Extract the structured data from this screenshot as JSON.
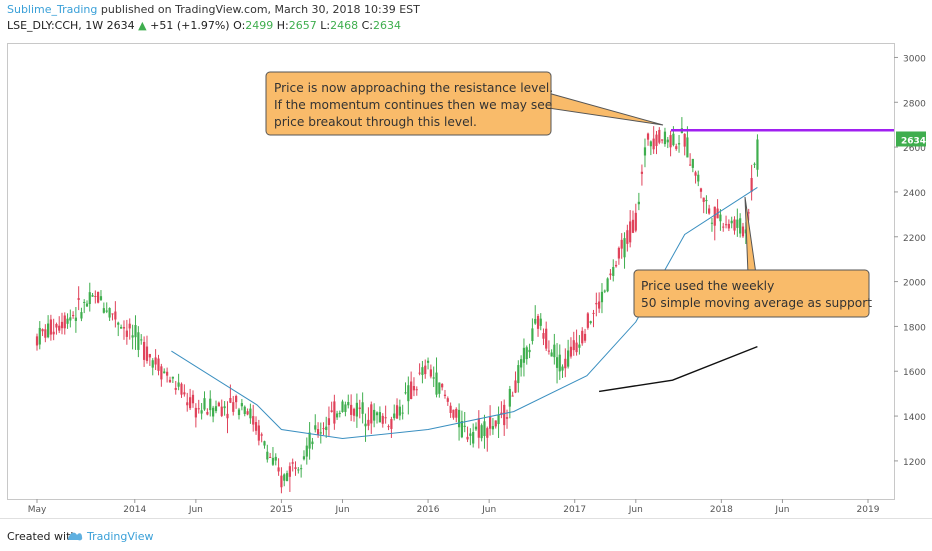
{
  "header": {
    "author": "Sublime_Trading",
    "published": "published on TradingView.com, March 30, 2018 10:39 EST",
    "symbol": "LSE_DLY:CCH, 1W",
    "last": "2634",
    "arrow": "▲",
    "change": "+51 (+1.97%)",
    "o_label": "O:",
    "o_val": "2499",
    "h_label": "H:",
    "h_val": "2657",
    "l_label": "L:",
    "l_val": "2468",
    "c_label": "C:",
    "c_val": "2634"
  },
  "footer": {
    "created": "Created with",
    "brand": "TradingView"
  },
  "chart_data": {
    "type": "candlestick",
    "x_tick_labels": [
      "May",
      "2014",
      "Jun",
      "2015",
      "Jun",
      "2016",
      "Jun",
      "2017",
      "Jun",
      "2018",
      "Jun",
      "2019"
    ],
    "y_ticks": [
      1200,
      1400,
      1600,
      1800,
      2000,
      2200,
      2400,
      2600,
      2800,
      3000
    ],
    "ylim": [
      1030,
      3060
    ],
    "last_price_label": "2634",
    "resistance_level": 2675,
    "colors": {
      "up": "#3fae4e",
      "down": "#e0425a",
      "resistance": "#a020f0",
      "sma50": "#3a8fc0",
      "sma200": "#111111",
      "callout_fill": "#f9bb6a",
      "callout_stroke": "#555555"
    },
    "annotations": [
      {
        "lines": [
          "Price is now approaching the resistance level.",
          "If the momentum continues then we may see",
          "price breakout through this level."
        ]
      },
      {
        "lines": [
          "Price used the weekly",
          "50 simple moving average as support"
        ]
      }
    ],
    "key_points": [
      {
        "date": "2013-05",
        "close": 1750
      },
      {
        "date": "2013-10",
        "close": 1930
      },
      {
        "date": "2014-02",
        "close": 1690
      },
      {
        "date": "2014-06",
        "close": 1430
      },
      {
        "date": "2014-10",
        "close": 1460
      },
      {
        "date": "2015-01",
        "close": 1110
      },
      {
        "date": "2015-04",
        "close": 1330
      },
      {
        "date": "2015-06",
        "close": 1450
      },
      {
        "date": "2015-10",
        "close": 1380
      },
      {
        "date": "2016-01",
        "close": 1620
      },
      {
        "date": "2016-04",
        "close": 1330
      },
      {
        "date": "2016-07",
        "close": 1370
      },
      {
        "date": "2016-10",
        "close": 1820
      },
      {
        "date": "2016-12",
        "close": 1620
      },
      {
        "date": "2017-03",
        "close": 1900
      },
      {
        "date": "2017-06",
        "close": 2280
      },
      {
        "date": "2017-07",
        "close": 2650
      },
      {
        "date": "2017-10",
        "close": 2630
      },
      {
        "date": "2017-12",
        "close": 2310
      },
      {
        "date": "2018-03",
        "close": 2230
      },
      {
        "date": "2018-03-30",
        "close": 2634
      }
    ],
    "sma50_points": [
      {
        "date": "2014-04",
        "value": 1690
      },
      {
        "date": "2014-11",
        "value": 1450
      },
      {
        "date": "2015-01",
        "value": 1340
      },
      {
        "date": "2015-06",
        "value": 1300
      },
      {
        "date": "2016-01",
        "value": 1340
      },
      {
        "date": "2016-08",
        "value": 1420
      },
      {
        "date": "2017-02",
        "value": 1580
      },
      {
        "date": "2017-06",
        "value": 1820
      },
      {
        "date": "2017-10",
        "value": 2210
      },
      {
        "date": "2018-03-30",
        "value": 2420
      }
    ],
    "sma200_points": [
      {
        "date": "2017-03",
        "value": 1510
      },
      {
        "date": "2017-09",
        "value": 1560
      },
      {
        "date": "2018-03-30",
        "value": 1710
      }
    ]
  }
}
